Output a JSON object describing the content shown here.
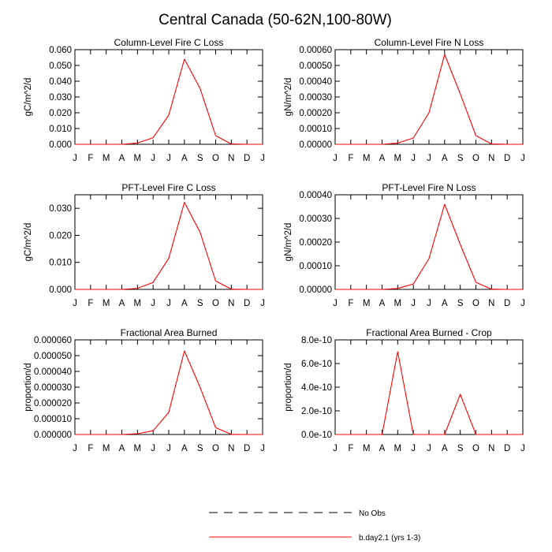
{
  "figure": {
    "title": "Central Canada (50-62N,100-80W)"
  },
  "legend": {
    "items": [
      {
        "label": "No Obs",
        "color": "#000000",
        "style": "dashed"
      },
      {
        "label": "b.day2.1 (yrs 1-3)",
        "color": "#ff0000",
        "style": "solid"
      }
    ]
  },
  "chart_data": [
    {
      "type": "line",
      "title": "Column-Level Fire C Loss",
      "ylabel": "gC/m^2/d",
      "categories": [
        "J",
        "F",
        "M",
        "A",
        "M",
        "J",
        "J",
        "A",
        "S",
        "O",
        "N",
        "D",
        "J"
      ],
      "ylim": [
        0,
        0.06
      ],
      "yticks": [
        "0.000",
        "0.010",
        "0.020",
        "0.030",
        "0.040",
        "0.050",
        "0.060"
      ],
      "series": [
        {
          "name": "b.day2.1 (yrs 1-3)",
          "color": "#ff0000",
          "values": [
            0,
            0,
            0,
            0,
            0.0008,
            0.0042,
            0.0185,
            0.054,
            0.0355,
            0.0055,
            0.0002,
            0,
            0
          ]
        }
      ]
    },
    {
      "type": "line",
      "title": "Column-Level Fire N Loss",
      "ylabel": "gN/m^2/d",
      "categories": [
        "J",
        "F",
        "M",
        "A",
        "M",
        "J",
        "J",
        "A",
        "S",
        "O",
        "N",
        "D",
        "J"
      ],
      "ylim": [
        0,
        0.0006
      ],
      "yticks": [
        "0.00000",
        "0.00010",
        "0.00020",
        "0.00030",
        "0.00040",
        "0.00050",
        "0.00060"
      ],
      "series": [
        {
          "name": "b.day2.1 (yrs 1-3)",
          "color": "#ff0000",
          "values": [
            0,
            0,
            0,
            0,
            8e-06,
            4e-05,
            0.0002,
            0.00057,
            0.00032,
            5.5e-05,
            2e-06,
            0,
            0
          ]
        }
      ]
    },
    {
      "type": "line",
      "title": "PFT-Level Fire C Loss",
      "ylabel": "gC/m^2/d",
      "categories": [
        "J",
        "F",
        "M",
        "A",
        "M",
        "J",
        "J",
        "A",
        "S",
        "O",
        "N",
        "D",
        "J"
      ],
      "ylim": [
        0,
        0.035
      ],
      "yticks": [
        "0.000",
        "0.010",
        "0.020",
        "0.030"
      ],
      "series": [
        {
          "name": "b.day2.1 (yrs 1-3)",
          "color": "#ff0000",
          "values": [
            0,
            0,
            0,
            0,
            0.0004,
            0.0026,
            0.0115,
            0.0322,
            0.0212,
            0.0031,
            0.0001,
            0,
            0
          ]
        }
      ]
    },
    {
      "type": "line",
      "title": "PFT-Level Fire N Loss",
      "ylabel": "gN/m^2/d",
      "categories": [
        "J",
        "F",
        "M",
        "A",
        "M",
        "J",
        "J",
        "A",
        "S",
        "O",
        "N",
        "D",
        "J"
      ],
      "ylim": [
        0,
        0.0004
      ],
      "yticks": [
        "0.00000",
        "0.00010",
        "0.00020",
        "0.00030",
        "0.00040"
      ],
      "series": [
        {
          "name": "b.day2.1 (yrs 1-3)",
          "color": "#ff0000",
          "values": [
            0,
            0,
            0,
            0,
            4e-06,
            2.3e-05,
            0.00013,
            0.00036,
            0.00019,
            3e-05,
            1e-06,
            0,
            0
          ]
        }
      ]
    },
    {
      "type": "line",
      "title": "Fractional Area Burned",
      "ylabel": "proportion/d",
      "categories": [
        "J",
        "F",
        "M",
        "A",
        "M",
        "J",
        "J",
        "A",
        "S",
        "O",
        "N",
        "D",
        "J"
      ],
      "ylim": [
        0,
        6e-05
      ],
      "yticks": [
        "0.000000",
        "0.000010",
        "0.000020",
        "0.000030",
        "0.000040",
        "0.000050",
        "0.000060"
      ],
      "series": [
        {
          "name": "b.day2.1 (yrs 1-3)",
          "color": "#ff0000",
          "values": [
            0,
            0,
            0,
            0,
            5e-07,
            2.4e-06,
            1.4e-05,
            5.3e-05,
            3e-05,
            4.3e-06,
            1e-07,
            0,
            0
          ]
        }
      ]
    },
    {
      "type": "line",
      "title": "Fractional Area Burned - Crop",
      "ylabel": "proportion/d",
      "categories": [
        "J",
        "F",
        "M",
        "A",
        "M",
        "J",
        "J",
        "A",
        "S",
        "O",
        "N",
        "D",
        "J"
      ],
      "ylim": [
        0,
        8e-10
      ],
      "yticks": [
        "0.0e-10",
        "2.0e-10",
        "4.0e-10",
        "6.0e-10",
        "8.0e-10"
      ],
      "series": [
        {
          "name": "b.day2.1 (yrs 1-3)",
          "color": "#ff0000",
          "values": [
            0,
            0,
            0,
            0,
            7e-10,
            0,
            0,
            0,
            3.4e-10,
            0,
            0,
            0,
            0
          ]
        }
      ]
    }
  ]
}
